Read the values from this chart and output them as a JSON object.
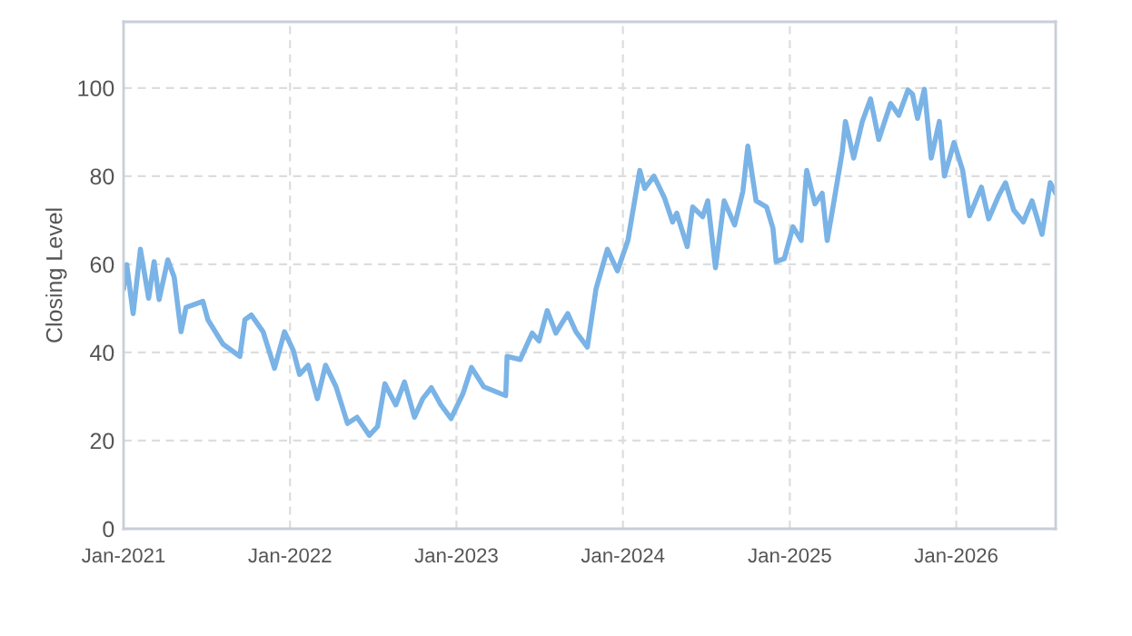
{
  "chart_data": {
    "type": "line",
    "ylabel": "Closing Level",
    "x": [
      "2021-01-01",
      "2021-01-08",
      "2021-01-22",
      "2021-02-07",
      "2021-02-25",
      "2021-03-09",
      "2021-03-20",
      "2021-04-08",
      "2021-04-22",
      "2021-05-07",
      "2021-05-18",
      "2021-06-24",
      "2021-07-05",
      "2021-08-07",
      "2021-09-13",
      "2021-09-24",
      "2021-10-08",
      "2021-11-03",
      "2021-11-28",
      "2021-12-20",
      "2022-01-08",
      "2022-01-22",
      "2022-02-10",
      "2022-03-02",
      "2022-03-20",
      "2022-04-12",
      "2022-05-07",
      "2022-05-28",
      "2022-06-24",
      "2022-07-12",
      "2022-07-28",
      "2022-08-21",
      "2022-09-09",
      "2022-10-01",
      "2022-10-19",
      "2022-11-07",
      "2022-11-28",
      "2022-12-20",
      "2023-01-15",
      "2023-02-03",
      "2023-03-02",
      "2023-04-19",
      "2023-04-22",
      "2023-05-21",
      "2023-06-16",
      "2023-07-01",
      "2023-07-19",
      "2023-08-07",
      "2023-09-02",
      "2023-09-20",
      "2023-10-15",
      "2023-11-03",
      "2023-11-28",
      "2023-12-20",
      "2024-01-12",
      "2024-02-07",
      "2024-02-18",
      "2024-03-09",
      "2024-04-01",
      "2024-04-19",
      "2024-04-28",
      "2024-05-21",
      "2024-06-02",
      "2024-06-24",
      "2024-07-05",
      "2024-07-22",
      "2024-08-10",
      "2024-09-02",
      "2024-09-20",
      "2024-10-01",
      "2024-10-19",
      "2024-11-11",
      "2024-11-25",
      "2024-12-02",
      "2024-12-20",
      "2025-01-08",
      "2025-01-26",
      "2025-02-07",
      "2025-02-25",
      "2025-03-13",
      "2025-03-24",
      "2025-04-08",
      "2025-04-26",
      "2025-05-03",
      "2025-05-21",
      "2025-06-09",
      "2025-06-27",
      "2025-07-15",
      "2025-08-10",
      "2025-08-28",
      "2025-09-17",
      "2025-09-27",
      "2025-10-08",
      "2025-10-23",
      "2025-11-07",
      "2025-11-25",
      "2025-12-06",
      "2025-12-27",
      "2026-01-15",
      "2026-01-30",
      "2026-02-25",
      "2026-03-13",
      "2026-04-05",
      "2026-04-19",
      "2026-05-07",
      "2026-05-28",
      "2026-06-16",
      "2026-07-08",
      "2026-07-26",
      "2026-08-07"
    ],
    "series": [
      {
        "color": "#7ab3e6",
        "values": [
          54.4,
          59.9,
          48.8,
          63.4,
          52.3,
          60.6,
          52.0,
          61.0,
          57.1,
          44.7,
          50.2,
          51.6,
          47.4,
          41.9,
          39.1,
          47.4,
          48.5,
          44.7,
          36.4,
          44.7,
          40.5,
          35.0,
          37.1,
          29.5,
          37.1,
          32.2,
          23.9,
          25.3,
          21.2,
          23.2,
          32.9,
          28.1,
          33.3,
          25.3,
          29.5,
          32.0,
          28.1,
          25.0,
          30.6,
          36.6,
          32.2,
          30.2,
          39.1,
          38.4,
          44.4,
          42.6,
          49.5,
          44.4,
          48.8,
          44.7,
          41.2,
          54.4,
          63.4,
          58.5,
          65.4,
          81.3,
          77.2,
          80.0,
          75.1,
          69.6,
          71.6,
          64.0,
          73.0,
          70.8,
          74.4,
          59.2,
          74.4,
          68.9,
          76.5,
          86.8,
          74.4,
          73.0,
          68.2,
          60.6,
          61.3,
          68.5,
          65.4,
          81.3,
          73.7,
          76.1,
          65.4,
          74.4,
          85.5,
          92.4,
          84.1,
          92.4,
          97.5,
          88.3,
          96.5,
          93.8,
          99.5,
          98.6,
          93.1,
          99.7,
          84.1,
          92.4,
          80.0,
          87.6,
          81.3,
          71.0,
          77.5,
          70.3,
          75.8,
          78.5,
          72.3,
          69.6,
          74.4,
          66.8,
          78.5,
          76.1
        ]
      }
    ],
    "xlim": [
      "2021-01-01",
      "2026-08-07"
    ],
    "xticks": [
      {
        "value": "2021-01-01",
        "label": "Jan-2021"
      },
      {
        "value": "2022-01-01",
        "label": "Jan-2022"
      },
      {
        "value": "2023-01-01",
        "label": "Jan-2023"
      },
      {
        "value": "2024-01-01",
        "label": "Jan-2024"
      },
      {
        "value": "2025-01-01",
        "label": "Jan-2025"
      },
      {
        "value": "2026-01-01",
        "label": "Jan-2026"
      }
    ],
    "ylim": [
      0,
      115
    ],
    "yticks": [
      0,
      20,
      40,
      60,
      80,
      100
    ],
    "grid": true
  }
}
